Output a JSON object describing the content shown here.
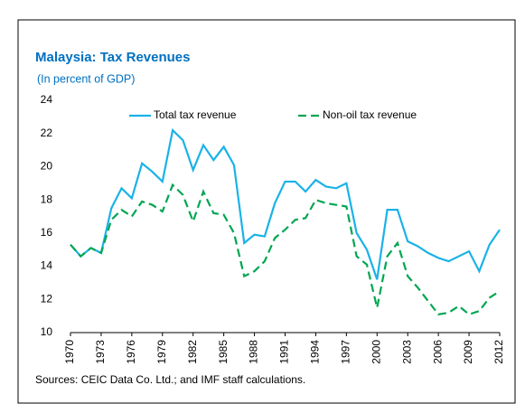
{
  "chart_data": {
    "type": "line",
    "title": "Malaysia: Tax Revenues",
    "subtitle": "(In percent of GDP)",
    "source": "Sources: CEIC Data Co. Ltd.; and IMF staff calculations.",
    "x": [
      1970,
      1971,
      1972,
      1973,
      1974,
      1975,
      1976,
      1977,
      1978,
      1979,
      1980,
      1981,
      1982,
      1983,
      1984,
      1985,
      1986,
      1987,
      1988,
      1989,
      1990,
      1991,
      1992,
      1993,
      1994,
      1995,
      1996,
      1997,
      1998,
      1999,
      2000,
      2001,
      2002,
      2003,
      2004,
      2005,
      2006,
      2007,
      2008,
      2009,
      2010,
      2011,
      2012
    ],
    "series": [
      {
        "name": "Total tax revenue",
        "color": "#1ab2e8",
        "dash": false,
        "values": [
          15.3,
          14.6,
          15.1,
          14.8,
          17.5,
          18.7,
          18.1,
          20.2,
          19.7,
          19.1,
          22.2,
          21.6,
          19.8,
          21.3,
          20.4,
          21.2,
          20.1,
          15.4,
          15.9,
          15.8,
          17.8,
          19.1,
          19.1,
          18.5,
          19.2,
          18.8,
          18.7,
          19.0,
          16.0,
          15.0,
          13.2,
          17.4,
          17.4,
          15.5,
          15.2,
          14.8,
          14.5,
          14.3,
          14.6,
          14.9,
          13.7,
          15.3,
          16.2
        ]
      },
      {
        "name": "Non-oil tax revenue",
        "color": "#00a651",
        "dash": true,
        "values": [
          15.3,
          14.6,
          15.1,
          14.8,
          16.8,
          17.4,
          17.0,
          17.9,
          17.7,
          17.3,
          18.9,
          18.3,
          16.7,
          18.5,
          17.2,
          17.1,
          16.0,
          13.4,
          13.7,
          14.3,
          15.7,
          16.2,
          16.8,
          16.9,
          18.0,
          17.8,
          17.7,
          17.6,
          14.6,
          14.1,
          11.5,
          14.6,
          15.4,
          13.4,
          12.7,
          11.9,
          11.1,
          11.2,
          11.6,
          11.1,
          11.3,
          12.1,
          12.5
        ]
      }
    ],
    "xlim": [
      1970,
      2012
    ],
    "xticks": [
      1970,
      1973,
      1976,
      1979,
      1982,
      1985,
      1988,
      1991,
      1994,
      1997,
      2000,
      2003,
      2006,
      2009,
      2012
    ],
    "ylim": [
      10,
      24
    ],
    "yticks": [
      10,
      12,
      14,
      16,
      18,
      20,
      22,
      24
    ],
    "legend": "top"
  }
}
